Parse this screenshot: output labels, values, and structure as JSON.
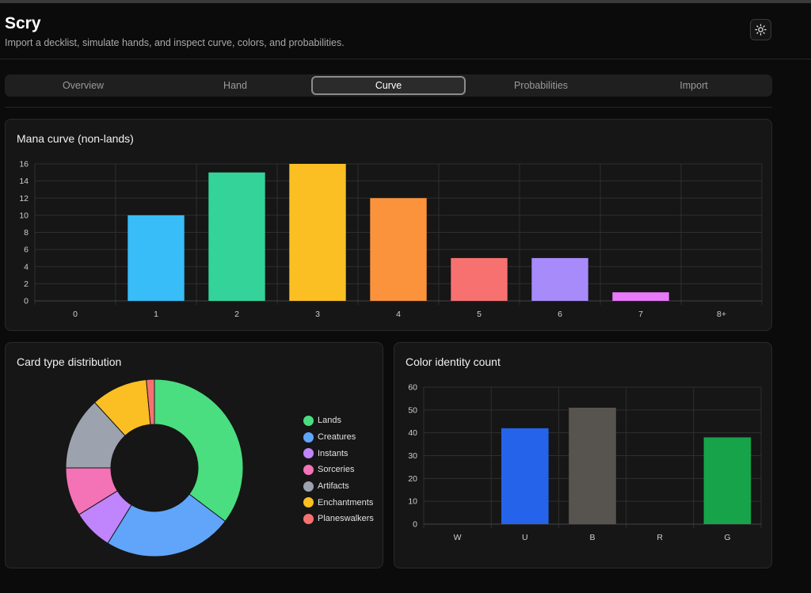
{
  "app": {
    "title": "Scry",
    "subtitle": "Import a decklist, simulate hands, and inspect curve, colors, and probabilities."
  },
  "icons": {
    "theme_toggle": "sun-icon"
  },
  "tabs": [
    {
      "label": "Overview",
      "active": false
    },
    {
      "label": "Hand",
      "active": false
    },
    {
      "label": "Curve",
      "active": true
    },
    {
      "label": "Probabilities",
      "active": false
    },
    {
      "label": "Import",
      "active": false
    }
  ],
  "mana_curve": {
    "title": "Mana curve (non-lands)",
    "chart_data": {
      "type": "bar",
      "categories": [
        "0",
        "1",
        "2",
        "3",
        "4",
        "5",
        "6",
        "7",
        "8+"
      ],
      "values": [
        0,
        10,
        15,
        16,
        12,
        5,
        5,
        1,
        0
      ],
      "colors": [
        "#38bdf8",
        "#38bdf8",
        "#34d399",
        "#fbbf24",
        "#fb923c",
        "#f87171",
        "#a78bfa",
        "#e879f9",
        "#e879f9"
      ],
      "ylim": [
        0,
        16
      ],
      "yticks": [
        0,
        2,
        4,
        6,
        8,
        10,
        12,
        14,
        16
      ],
      "grid": true
    }
  },
  "card_types": {
    "title": "Card type distribution",
    "chart_data": {
      "type": "pie",
      "donut": true,
      "labels": [
        "Lands",
        "Creatures",
        "Instants",
        "Sorceries",
        "Artifacts",
        "Enchantments",
        "Planeswalkers"
      ],
      "values": [
        24,
        16,
        5,
        6,
        9,
        7,
        1
      ],
      "colors": [
        "#4ade80",
        "#60a5fa",
        "#c084fc",
        "#f472b6",
        "#9ca3af",
        "#fbbf24",
        "#f87171"
      ],
      "legend": "right"
    }
  },
  "color_identity": {
    "title": "Color identity count",
    "chart_data": {
      "type": "bar",
      "categories": [
        "W",
        "U",
        "B",
        "R",
        "G"
      ],
      "values": [
        0,
        42,
        51,
        0,
        38
      ],
      "colors": [
        "#f5f5f5",
        "#2563eb",
        "#57534e",
        "#dc2626",
        "#16a34a"
      ],
      "ylim": [
        0,
        60
      ],
      "yticks": [
        0,
        10,
        20,
        30,
        40,
        50,
        60
      ],
      "grid": true
    }
  }
}
